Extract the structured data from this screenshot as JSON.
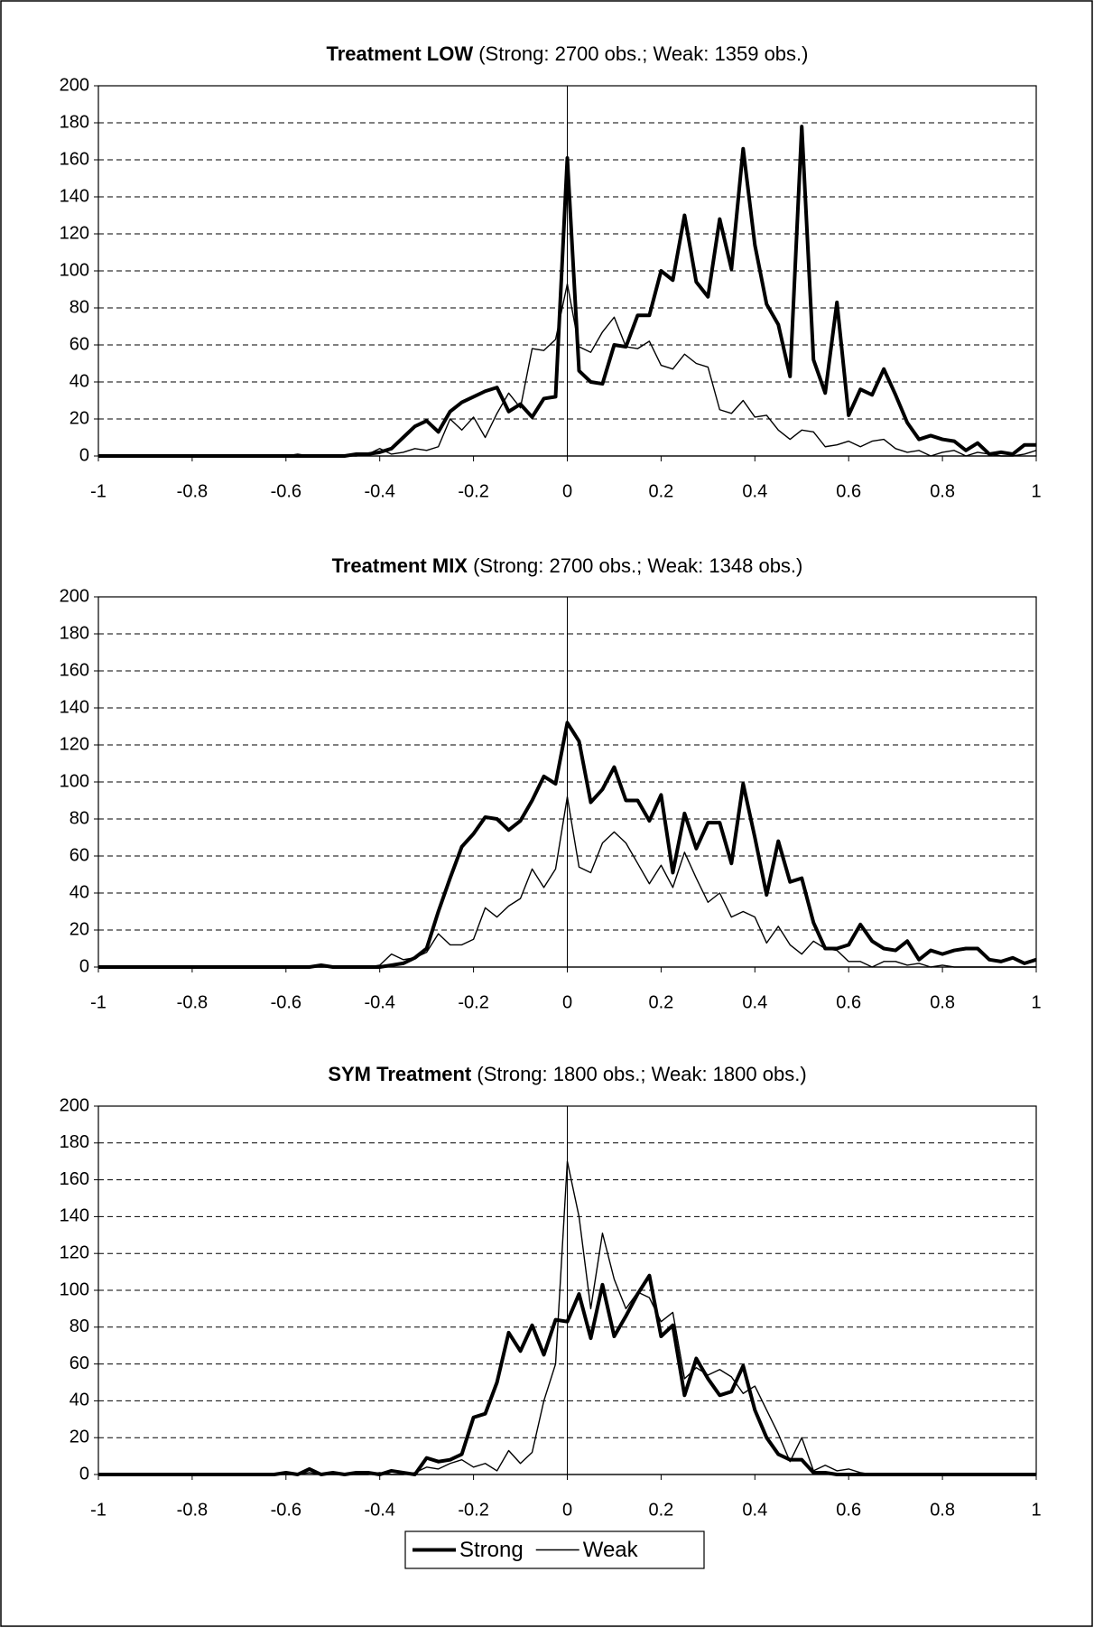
{
  "chart_data": [
    {
      "type": "line",
      "title": "Treatment LOW",
      "title_note": "(Strong: 2700 obs.; Weak: 1359 obs.)",
      "x": [
        -1,
        -0.975,
        -0.95,
        -0.925,
        -0.9,
        -0.875,
        -0.85,
        -0.825,
        -0.8,
        -0.775,
        -0.75,
        -0.725,
        -0.7,
        -0.675,
        -0.65,
        -0.625,
        -0.6,
        -0.575,
        -0.55,
        -0.525,
        -0.5,
        -0.475,
        -0.45,
        -0.425,
        -0.4,
        -0.375,
        -0.35,
        -0.325,
        -0.3,
        -0.275,
        -0.25,
        -0.225,
        -0.2,
        -0.175,
        -0.15,
        -0.125,
        -0.1,
        -0.075,
        -0.05,
        -0.025,
        0,
        0.025,
        0.05,
        0.075,
        0.1,
        0.125,
        0.15,
        0.175,
        0.2,
        0.225,
        0.25,
        0.275,
        0.3,
        0.325,
        0.35,
        0.375,
        0.4,
        0.425,
        0.45,
        0.475,
        0.5,
        0.525,
        0.55,
        0.575,
        0.6,
        0.625,
        0.65,
        0.675,
        0.7,
        0.725,
        0.75,
        0.775,
        0.8,
        0.825,
        0.85,
        0.875,
        0.9,
        0.925,
        0.95,
        0.975,
        1
      ],
      "series": [
        {
          "name": "Strong",
          "color": "#000000",
          "values": [
            0,
            0,
            0,
            0,
            0,
            0,
            0,
            0,
            0,
            0,
            0,
            0,
            0,
            0,
            0,
            0,
            0,
            0,
            0,
            0,
            0,
            0,
            1,
            1,
            2,
            4,
            10,
            16,
            19,
            13,
            24,
            29,
            32,
            35,
            37,
            24,
            28,
            21,
            31,
            32,
            161,
            46,
            40,
            39,
            60,
            59,
            76,
            76,
            100,
            95,
            130,
            94,
            86,
            128,
            101,
            166,
            114,
            82,
            71,
            43,
            178,
            52,
            34,
            83,
            22,
            36,
            33,
            47,
            33,
            18,
            9,
            11,
            9,
            8,
            3,
            7,
            1,
            2,
            1,
            6,
            6
          ]
        },
        {
          "name": "Weak",
          "color": "#000000",
          "values": [
            0,
            0,
            0,
            0,
            0,
            0,
            0,
            0,
            0,
            0,
            0,
            0,
            0,
            0,
            0,
            0,
            0,
            1,
            0,
            0,
            0,
            0,
            0,
            1,
            4,
            1,
            2,
            4,
            3,
            5,
            20,
            14,
            21,
            10,
            23,
            34,
            26,
            58,
            57,
            63,
            93,
            59,
            56,
            67,
            75,
            59,
            58,
            62,
            49,
            47,
            55,
            50,
            48,
            25,
            23,
            30,
            21,
            22,
            14,
            9,
            14,
            13,
            5,
            6,
            8,
            5,
            8,
            9,
            4,
            2,
            3,
            0,
            2,
            3,
            0,
            2,
            1,
            0,
            0,
            1,
            3
          ]
        }
      ],
      "xlim": [
        -1,
        1
      ],
      "xticks": [
        -1,
        -0.8,
        -0.6,
        -0.4,
        -0.2,
        0,
        0.2,
        0.4,
        0.6,
        0.8,
        1
      ],
      "ylim": [
        0,
        200
      ],
      "yticks": [
        0,
        20,
        40,
        60,
        80,
        100,
        120,
        140,
        160,
        180,
        200
      ],
      "grid": true
    },
    {
      "type": "line",
      "title": "Treatment MIX",
      "title_note": "(Strong: 2700 obs.; Weak: 1348 obs.)",
      "x": [
        -1,
        -0.975,
        -0.95,
        -0.925,
        -0.9,
        -0.875,
        -0.85,
        -0.825,
        -0.8,
        -0.775,
        -0.75,
        -0.725,
        -0.7,
        -0.675,
        -0.65,
        -0.625,
        -0.6,
        -0.575,
        -0.55,
        -0.525,
        -0.5,
        -0.475,
        -0.45,
        -0.425,
        -0.4,
        -0.375,
        -0.35,
        -0.325,
        -0.3,
        -0.275,
        -0.25,
        -0.225,
        -0.2,
        -0.175,
        -0.15,
        -0.125,
        -0.1,
        -0.075,
        -0.05,
        -0.025,
        0,
        0.025,
        0.05,
        0.075,
        0.1,
        0.125,
        0.15,
        0.175,
        0.2,
        0.225,
        0.25,
        0.275,
        0.3,
        0.325,
        0.35,
        0.375,
        0.4,
        0.425,
        0.45,
        0.475,
        0.5,
        0.525,
        0.55,
        0.575,
        0.6,
        0.625,
        0.65,
        0.675,
        0.7,
        0.725,
        0.75,
        0.775,
        0.8,
        0.825,
        0.85,
        0.875,
        0.9,
        0.925,
        0.95,
        0.975,
        1
      ],
      "series": [
        {
          "name": "Strong",
          "color": "#000000",
          "values": [
            0,
            0,
            0,
            0,
            0,
            0,
            0,
            0,
            0,
            0,
            0,
            0,
            0,
            0,
            0,
            0,
            0,
            0,
            0,
            1,
            0,
            0,
            0,
            0,
            0,
            1,
            2,
            5,
            10,
            30,
            48,
            65,
            72,
            81,
            80,
            74,
            79,
            90,
            103,
            99,
            132,
            122,
            89,
            96,
            108,
            90,
            90,
            79,
            93,
            51,
            83,
            64,
            78,
            78,
            56,
            99,
            70,
            39,
            68,
            46,
            48,
            24,
            10,
            10,
            12,
            23,
            14,
            10,
            9,
            14,
            4,
            9,
            7,
            9,
            10,
            10,
            4,
            3,
            5,
            2,
            4
          ]
        },
        {
          "name": "Weak",
          "color": "#000000",
          "values": [
            0,
            0,
            0,
            0,
            0,
            0,
            0,
            0,
            0,
            0,
            0,
            0,
            0,
            0,
            0,
            0,
            0,
            0,
            0,
            0,
            0,
            0,
            0,
            0,
            1,
            7,
            4,
            5,
            8,
            18,
            12,
            12,
            15,
            32,
            27,
            33,
            37,
            53,
            43,
            53,
            92,
            54,
            51,
            67,
            73,
            67,
            56,
            45,
            55,
            43,
            62,
            48,
            35,
            40,
            27,
            30,
            27,
            13,
            22,
            12,
            7,
            14,
            10,
            9,
            3,
            3,
            0,
            3,
            3,
            1,
            2,
            0,
            1,
            0,
            0,
            0,
            0,
            0,
            0,
            0,
            0
          ]
        }
      ],
      "xlim": [
        -1,
        1
      ],
      "xticks": [
        -1,
        -0.8,
        -0.6,
        -0.4,
        -0.2,
        0,
        0.2,
        0.4,
        0.6,
        0.8,
        1
      ],
      "ylim": [
        0,
        200
      ],
      "yticks": [
        0,
        20,
        40,
        60,
        80,
        100,
        120,
        140,
        160,
        180,
        200
      ],
      "grid": true
    },
    {
      "type": "line",
      "title": "SYM Treatment",
      "title_note": "(Strong: 1800 obs.; Weak: 1800 obs.)",
      "x": [
        -1,
        -0.975,
        -0.95,
        -0.925,
        -0.9,
        -0.875,
        -0.85,
        -0.825,
        -0.8,
        -0.775,
        -0.75,
        -0.725,
        -0.7,
        -0.675,
        -0.65,
        -0.625,
        -0.6,
        -0.575,
        -0.55,
        -0.525,
        -0.5,
        -0.475,
        -0.45,
        -0.425,
        -0.4,
        -0.375,
        -0.35,
        -0.325,
        -0.3,
        -0.275,
        -0.25,
        -0.225,
        -0.2,
        -0.175,
        -0.15,
        -0.125,
        -0.1,
        -0.075,
        -0.05,
        -0.025,
        0,
        0.025,
        0.05,
        0.075,
        0.1,
        0.125,
        0.15,
        0.175,
        0.2,
        0.225,
        0.25,
        0.275,
        0.3,
        0.325,
        0.35,
        0.375,
        0.4,
        0.425,
        0.45,
        0.475,
        0.5,
        0.525,
        0.55,
        0.575,
        0.6,
        0.625,
        0.65,
        0.675,
        0.7,
        0.725,
        0.75,
        0.775,
        0.8,
        0.825,
        0.85,
        0.875,
        0.9,
        0.925,
        0.95,
        0.975,
        1
      ],
      "series": [
        {
          "name": "Strong",
          "color": "#000000",
          "values": [
            0,
            0,
            0,
            0,
            0,
            0,
            0,
            0,
            0,
            0,
            0,
            0,
            0,
            0,
            0,
            0,
            1,
            0,
            3,
            0,
            1,
            0,
            1,
            1,
            0,
            2,
            1,
            0,
            9,
            7,
            8,
            11,
            31,
            33,
            50,
            77,
            67,
            81,
            65,
            84,
            83,
            98,
            74,
            103,
            75,
            86,
            98,
            108,
            75,
            81,
            43,
            63,
            52,
            43,
            45,
            59,
            35,
            20,
            11,
            8,
            8,
            1,
            1,
            0,
            0,
            0,
            0,
            0,
            0,
            0,
            0,
            0,
            0,
            0,
            0,
            0,
            0,
            0,
            0,
            0,
            0
          ]
        },
        {
          "name": "Weak",
          "color": "#000000",
          "values": [
            0,
            0,
            0,
            0,
            0,
            0,
            0,
            0,
            0,
            0,
            0,
            0,
            0,
            0,
            0,
            0,
            0,
            0,
            1,
            0,
            0,
            0,
            0,
            0,
            1,
            0,
            0,
            1,
            4,
            3,
            6,
            8,
            4,
            6,
            2,
            13,
            6,
            12,
            40,
            60,
            170,
            140,
            90,
            131,
            106,
            90,
            99,
            96,
            83,
            88,
            52,
            58,
            54,
            57,
            53,
            44,
            48,
            35,
            22,
            7,
            20,
            2,
            5,
            2,
            3,
            1,
            0,
            0,
            0,
            0,
            0,
            0,
            0,
            0,
            0,
            0,
            0,
            0,
            0,
            0,
            0
          ]
        }
      ],
      "xlim": [
        -1,
        1
      ],
      "xticks": [
        -1,
        -0.8,
        -0.6,
        -0.4,
        -0.2,
        0,
        0.2,
        0.4,
        0.6,
        0.8,
        1
      ],
      "ylim": [
        0,
        200
      ],
      "yticks": [
        0,
        20,
        40,
        60,
        80,
        100,
        120,
        140,
        160,
        180,
        200
      ],
      "grid": true
    }
  ]
}
